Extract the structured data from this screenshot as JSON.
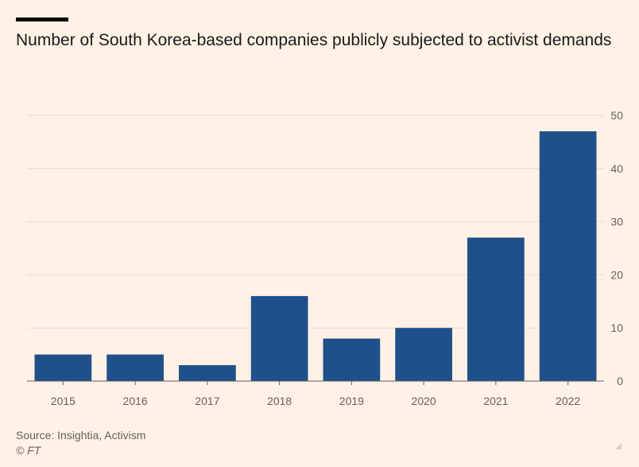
{
  "header": {
    "title": "Number of South Korea-based companies publicly subjected to activist demands"
  },
  "footer": {
    "source": "Source: Insightia, Activism",
    "copyright": "© FT"
  },
  "colors": {
    "background": "#fff1e5",
    "bar": "#1e5089",
    "grid": "#e9dccf",
    "baseline": "#66605c",
    "text": "#66605c"
  },
  "chart_data": {
    "type": "bar",
    "title": "Number of South Korea-based companies publicly subjected to activist demands",
    "xlabel": "",
    "ylabel": "",
    "categories": [
      "2015",
      "2016",
      "2017",
      "2018",
      "2019",
      "2020",
      "2021",
      "2022"
    ],
    "values": [
      5,
      5,
      3,
      16,
      8,
      10,
      27,
      47
    ],
    "ylim": [
      0,
      50
    ],
    "yticks": [
      "0",
      "10",
      "20",
      "30",
      "40",
      "50"
    ],
    "y_axis_side": "right",
    "grid": true,
    "legend": "none"
  }
}
